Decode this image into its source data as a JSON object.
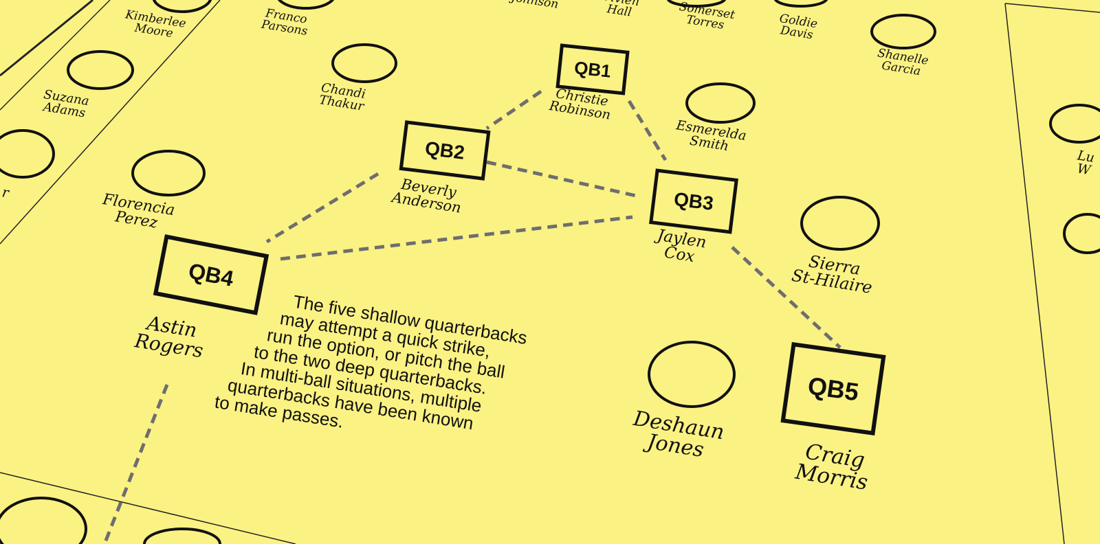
{
  "note_lines": [
    "The five shallow quarterbacks",
    "may attempt a quick strike,",
    "run the option, or pitch the ball",
    "to the two deep quarterbacks.",
    "In multi-ball situations, multiple",
    "quarterbacks have been known",
    "to make passes."
  ],
  "quarterbacks": [
    {
      "code": "QB1",
      "name": [
        "Christie",
        "Robinson"
      ]
    },
    {
      "code": "QB2",
      "name": [
        "Beverly",
        "Anderson"
      ]
    },
    {
      "code": "QB3",
      "name": [
        "Jaylen",
        "Cox"
      ]
    },
    {
      "code": "QB4",
      "name": [
        "Astin",
        "Rogers"
      ]
    },
    {
      "code": "QB5",
      "name": [
        "Craig",
        "Morris"
      ]
    }
  ],
  "players": [
    {
      "name": [
        "Kimberlee",
        "Moore"
      ]
    },
    {
      "name": [
        "Franco",
        "Parsons"
      ]
    },
    {
      "name": [
        "Johnson"
      ]
    },
    {
      "name": [
        "Vivien",
        "Hall"
      ]
    },
    {
      "name": [
        "Somerset",
        "Torres"
      ]
    },
    {
      "name": [
        "Goldie",
        "Davis"
      ]
    },
    {
      "name": [
        "Shanelle",
        "Garcia"
      ]
    },
    {
      "name": [
        "Suzana",
        "Adams"
      ]
    },
    {
      "name": [
        "Chandi",
        "Thakur"
      ]
    },
    {
      "name": [
        "Esmerelda",
        "Smith"
      ]
    },
    {
      "name": [
        "r"
      ]
    },
    {
      "name": [
        "Florencia",
        "Perez"
      ]
    },
    {
      "name": [
        "Sierra",
        "St-Hilaire"
      ]
    },
    {
      "name": [
        "Deshaun",
        "Jones"
      ]
    },
    {
      "name": [
        "Lu",
        "W"
      ]
    }
  ],
  "colors": {
    "background": "#fbf284",
    "ink": "#111111",
    "dash": "#6e6e6e"
  }
}
